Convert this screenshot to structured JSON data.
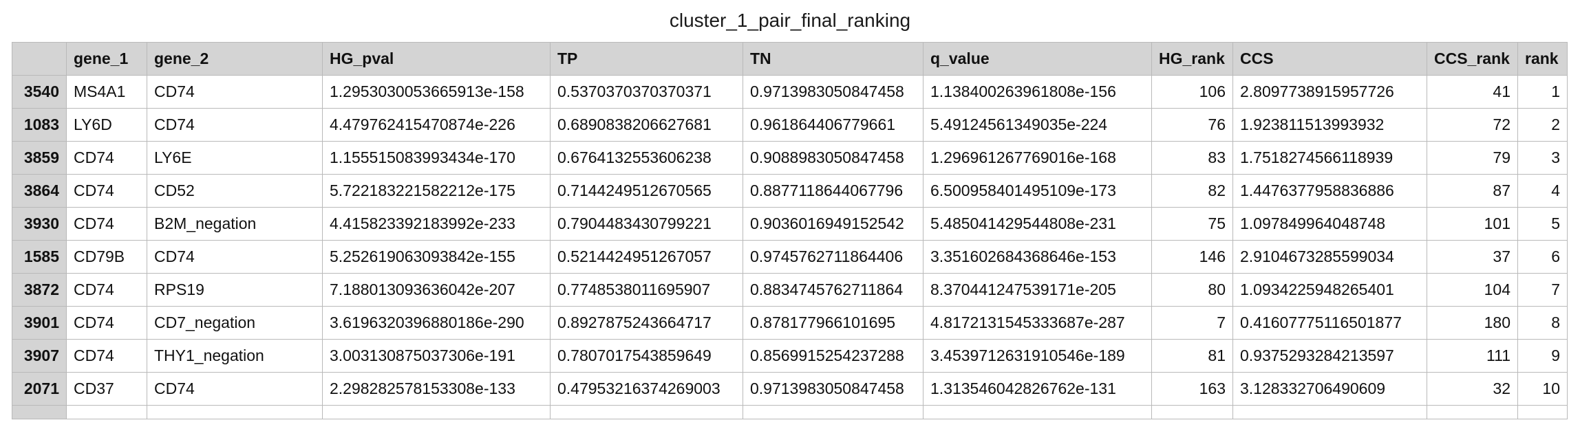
{
  "title": "cluster_1_pair_final_ranking",
  "table": {
    "headers": [
      "",
      "gene_1",
      "gene_2",
      "HG_pval",
      "TP",
      "TN",
      "q_value",
      "HG_rank",
      "CCS",
      "CCS_rank",
      "rank"
    ],
    "rows": [
      [
        "3540",
        "MS4A1",
        "CD74",
        "1.2953030053665913e-158",
        "0.5370370370370371",
        "0.9713983050847458",
        "1.138400263961808e-156",
        "106",
        "2.8097738915957726",
        "41",
        "1"
      ],
      [
        "1083",
        "LY6D",
        "CD74",
        "4.479762415470874e-226",
        "0.6890838206627681",
        "0.961864406779661",
        "5.49124561349035e-224",
        "76",
        "1.923811513993932",
        "72",
        "2"
      ],
      [
        "3859",
        "CD74",
        "LY6E",
        "1.155515083993434e-170",
        "0.6764132553606238",
        "0.9088983050847458",
        "1.296961267769016e-168",
        "83",
        "1.7518274566118939",
        "79",
        "3"
      ],
      [
        "3864",
        "CD74",
        "CD52",
        "5.722183221582212e-175",
        "0.7144249512670565",
        "0.8877118644067796",
        "6.500958401495109e-173",
        "82",
        "1.4476377958836886",
        "87",
        "4"
      ],
      [
        "3930",
        "CD74",
        "B2M_negation",
        "4.415823392183992e-233",
        "0.7904483430799221",
        "0.9036016949152542",
        "5.485041429544808e-231",
        "75",
        "1.097849964048748",
        "101",
        "5"
      ],
      [
        "1585",
        "CD79B",
        "CD74",
        "5.252619063093842e-155",
        "0.5214424951267057",
        "0.9745762711864406",
        "3.351602684368646e-153",
        "146",
        "2.9104673285599034",
        "37",
        "6"
      ],
      [
        "3872",
        "CD74",
        "RPS19",
        "7.188013093636042e-207",
        "0.7748538011695907",
        "0.8834745762711864",
        "8.370441247539171e-205",
        "80",
        "1.0934225948265401",
        "104",
        "7"
      ],
      [
        "3901",
        "CD74",
        "CD7_negation",
        "3.6196320396880186e-290",
        "0.8927875243664717",
        "0.878177966101695",
        "4.8172131545333687e-287",
        "7",
        "0.41607775116501877",
        "180",
        "8"
      ],
      [
        "3907",
        "CD74",
        "THY1_negation",
        "3.003130875037306e-191",
        "0.7807017543859649",
        "0.8569915254237288",
        "3.4539712631910546e-189",
        "81",
        "0.9375293284213597",
        "111",
        "9"
      ],
      [
        "2071",
        "CD37",
        "CD74",
        "2.298282578153308e-133",
        "0.47953216374269003",
        "0.9713983050847458",
        "1.313546042826762e-131",
        "163",
        "3.128332706490609",
        "32",
        "10"
      ]
    ]
  }
}
